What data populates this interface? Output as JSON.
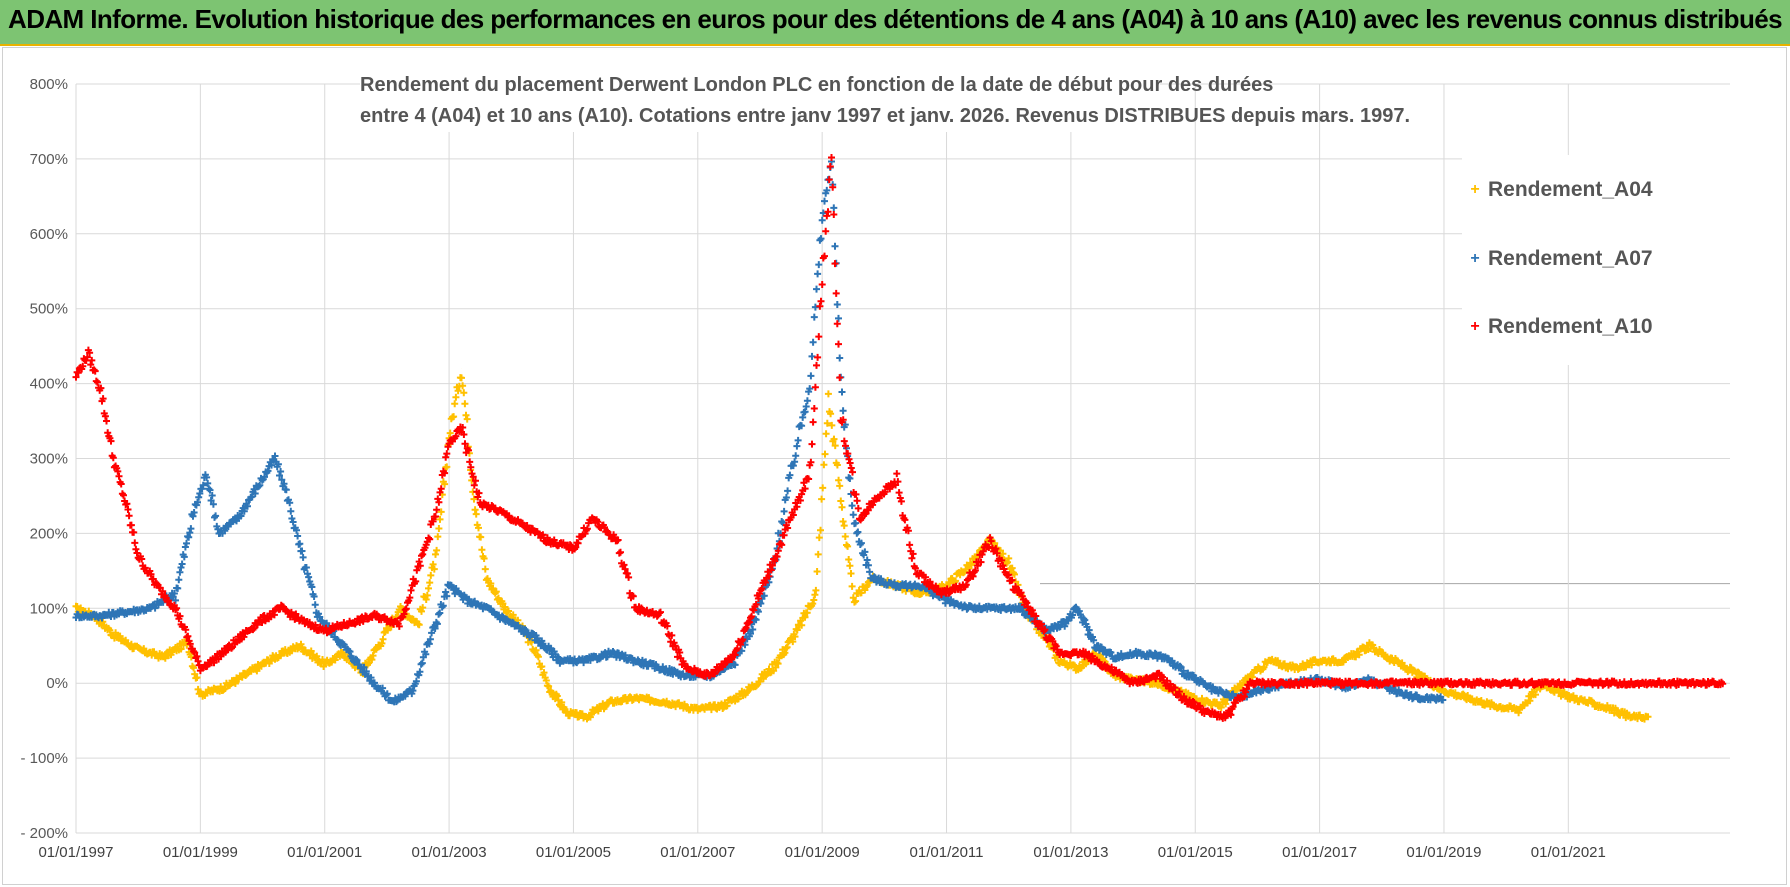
{
  "banner": {
    "title": "ADAM Informe. Evolution historique des performances en euros pour des détentions de 4 ans (A04) à 10 ans (A10) avec les revenus connus distribués"
  },
  "chart_data": {
    "type": "scatter",
    "title_line1": "Rendement du placement Derwent London PLC en fonction de la date de début pour des durées",
    "title_line2": "entre 4 (A04) et 10 ans (A10).  Cotations entre janv 1997 et janv. 2026. Revenus DISTRIBUES depuis mars. 1997.",
    "x_tick_labels": [
      "01/01/1997",
      "01/01/1999",
      "01/01/2001",
      "01/01/2003",
      "01/01/2005",
      "01/01/2007",
      "01/01/2009",
      "01/01/2011",
      "01/01/2013",
      "01/01/2015",
      "01/01/2017",
      "01/01/2019",
      "01/01/2021"
    ],
    "y_tick_labels": [
      "800%",
      "700%",
      "600%",
      "500%",
      "400%",
      "300%",
      "200%",
      "100%",
      "0%",
      "- 100%",
      "- 200%"
    ],
    "ylim": [
      -200,
      800
    ],
    "xlim": [
      1997.0,
      2023.6
    ],
    "grid": true,
    "legend_position": "top-right",
    "series": [
      {
        "name": "Rendement_A04",
        "color": "#ffc000",
        "points": [
          [
            1997.0,
            100
          ],
          [
            1997.3,
            90
          ],
          [
            1997.6,
            65
          ],
          [
            1998.0,
            45
          ],
          [
            1998.4,
            35
          ],
          [
            1998.8,
            55
          ],
          [
            1999.0,
            -15
          ],
          [
            1999.4,
            -5
          ],
          [
            1999.8,
            15
          ],
          [
            2000.2,
            35
          ],
          [
            2000.6,
            50
          ],
          [
            2001.0,
            25
          ],
          [
            2001.3,
            40
          ],
          [
            2001.6,
            15
          ],
          [
            2001.9,
            55
          ],
          [
            2002.2,
            100
          ],
          [
            2002.5,
            80
          ],
          [
            2002.8,
            170
          ],
          [
            2003.0,
            330
          ],
          [
            2003.2,
            420
          ],
          [
            2003.4,
            250
          ],
          [
            2003.6,
            140
          ],
          [
            2003.9,
            100
          ],
          [
            2004.2,
            70
          ],
          [
            2004.4,
            40
          ],
          [
            2004.6,
            -5
          ],
          [
            2004.9,
            -40
          ],
          [
            2005.2,
            -45
          ],
          [
            2005.6,
            -25
          ],
          [
            2006.0,
            -20
          ],
          [
            2006.5,
            -25
          ],
          [
            2007.0,
            -35
          ],
          [
            2007.4,
            -30
          ],
          [
            2007.8,
            -10
          ],
          [
            2008.2,
            20
          ],
          [
            2008.6,
            70
          ],
          [
            2008.9,
            120
          ],
          [
            2009.1,
            380
          ],
          [
            2009.3,
            250
          ],
          [
            2009.5,
            110
          ],
          [
            2009.8,
            140
          ],
          [
            2010.2,
            130
          ],
          [
            2010.6,
            120
          ],
          [
            2011.0,
            130
          ],
          [
            2011.4,
            160
          ],
          [
            2011.7,
            190
          ],
          [
            2012.0,
            160
          ],
          [
            2012.3,
            90
          ],
          [
            2012.6,
            60
          ],
          [
            2012.8,
            30
          ],
          [
            2013.1,
            20
          ],
          [
            2013.4,
            40
          ],
          [
            2013.7,
            10
          ],
          [
            2014.0,
            5
          ],
          [
            2014.4,
            0
          ],
          [
            2014.7,
            -10
          ],
          [
            2015.0,
            -20
          ],
          [
            2015.4,
            -30
          ],
          [
            2015.9,
            10
          ],
          [
            2016.2,
            30
          ],
          [
            2016.6,
            20
          ],
          [
            2017.0,
            30
          ],
          [
            2017.4,
            30
          ],
          [
            2017.8,
            50
          ],
          [
            2018.2,
            30
          ],
          [
            2018.6,
            10
          ],
          [
            2019.0,
            -10
          ],
          [
            2019.4,
            -20
          ],
          [
            2019.8,
            -30
          ],
          [
            2020.2,
            -35
          ],
          [
            2020.6,
            0
          ],
          [
            2020.9,
            -15
          ],
          [
            2021.3,
            -25
          ],
          [
            2021.7,
            -35
          ],
          [
            2022.0,
            -45
          ],
          [
            2022.3,
            -45
          ]
        ]
      },
      {
        "name": "Rendement_A07",
        "color": "#2e75b6",
        "points": [
          [
            1997.0,
            90
          ],
          [
            1997.4,
            90
          ],
          [
            1997.8,
            95
          ],
          [
            1998.2,
            100
          ],
          [
            1998.6,
            120
          ],
          [
            1998.9,
            230
          ],
          [
            1999.1,
            280
          ],
          [
            1999.3,
            200
          ],
          [
            1999.6,
            220
          ],
          [
            1999.9,
            260
          ],
          [
            2000.2,
            300
          ],
          [
            2000.4,
            250
          ],
          [
            2000.6,
            180
          ],
          [
            2000.9,
            90
          ],
          [
            2001.2,
            60
          ],
          [
            2001.5,
            30
          ],
          [
            2001.8,
            0
          ],
          [
            2002.1,
            -25
          ],
          [
            2002.4,
            -10
          ],
          [
            2002.7,
            60
          ],
          [
            2003.0,
            130
          ],
          [
            2003.3,
            110
          ],
          [
            2003.6,
            100
          ],
          [
            2004.0,
            80
          ],
          [
            2004.4,
            60
          ],
          [
            2004.8,
            30
          ],
          [
            2005.2,
            30
          ],
          [
            2005.6,
            40
          ],
          [
            2006.0,
            30
          ],
          [
            2006.4,
            20
          ],
          [
            2006.8,
            10
          ],
          [
            2007.2,
            10
          ],
          [
            2007.6,
            30
          ],
          [
            2007.9,
            80
          ],
          [
            2008.2,
            150
          ],
          [
            2008.5,
            280
          ],
          [
            2008.8,
            400
          ],
          [
            2009.0,
            620
          ],
          [
            2009.15,
            700
          ],
          [
            2009.3,
            400
          ],
          [
            2009.5,
            220
          ],
          [
            2009.8,
            140
          ],
          [
            2010.2,
            130
          ],
          [
            2010.6,
            130
          ],
          [
            2011.0,
            110
          ],
          [
            2011.4,
            100
          ],
          [
            2011.8,
            100
          ],
          [
            2012.2,
            100
          ],
          [
            2012.6,
            70
          ],
          [
            2012.9,
            80
          ],
          [
            2013.1,
            100
          ],
          [
            2013.4,
            50
          ],
          [
            2013.7,
            35
          ],
          [
            2014.1,
            40
          ],
          [
            2014.5,
            35
          ],
          [
            2014.9,
            10
          ],
          [
            2015.3,
            -10
          ],
          [
            2015.7,
            -20
          ],
          [
            2016.0,
            -10
          ],
          [
            2016.5,
            0
          ],
          [
            2017.0,
            5
          ],
          [
            2017.4,
            -5
          ],
          [
            2017.8,
            5
          ],
          [
            2018.2,
            -10
          ],
          [
            2018.6,
            -20
          ],
          [
            2019.0,
            -20
          ]
        ]
      },
      {
        "name": "Rendement_A10",
        "color": "#ff0000",
        "points": [
          [
            1997.0,
            410
          ],
          [
            1997.2,
            440
          ],
          [
            1997.4,
            390
          ],
          [
            1997.6,
            300
          ],
          [
            1997.8,
            240
          ],
          [
            1998.0,
            170
          ],
          [
            1998.3,
            130
          ],
          [
            1998.6,
            100
          ],
          [
            1998.8,
            60
          ],
          [
            1999.0,
            20
          ],
          [
            1999.2,
            30
          ],
          [
            1999.5,
            50
          ],
          [
            1999.9,
            80
          ],
          [
            2000.3,
            100
          ],
          [
            2000.7,
            80
          ],
          [
            2001.0,
            70
          ],
          [
            2001.4,
            80
          ],
          [
            2001.8,
            90
          ],
          [
            2002.2,
            80
          ],
          [
            2002.5,
            150
          ],
          [
            2002.8,
            230
          ],
          [
            2003.0,
            320
          ],
          [
            2003.2,
            340
          ],
          [
            2003.5,
            240
          ],
          [
            2003.8,
            230
          ],
          [
            2004.2,
            210
          ],
          [
            2004.6,
            190
          ],
          [
            2005.0,
            180
          ],
          [
            2005.3,
            220
          ],
          [
            2005.7,
            190
          ],
          [
            2006.0,
            100
          ],
          [
            2006.4,
            90
          ],
          [
            2006.8,
            20
          ],
          [
            2007.2,
            10
          ],
          [
            2007.6,
            40
          ],
          [
            2007.9,
            100
          ],
          [
            2008.2,
            160
          ],
          [
            2008.5,
            220
          ],
          [
            2008.8,
            280
          ],
          [
            2009.0,
            540
          ],
          [
            2009.15,
            700
          ],
          [
            2009.3,
            360
          ],
          [
            2009.6,
            220
          ],
          [
            2009.9,
            250
          ],
          [
            2010.2,
            270
          ],
          [
            2010.5,
            150
          ],
          [
            2010.9,
            120
          ],
          [
            2011.3,
            130
          ],
          [
            2011.7,
            190
          ],
          [
            2012.0,
            140
          ],
          [
            2012.4,
            90
          ],
          [
            2012.8,
            40
          ],
          [
            2013.2,
            40
          ],
          [
            2013.6,
            20
          ],
          [
            2014.0,
            0
          ],
          [
            2014.4,
            10
          ],
          [
            2014.8,
            -20
          ],
          [
            2015.2,
            -40
          ],
          [
            2015.5,
            -45
          ],
          [
            2015.9,
            0
          ],
          [
            2017.0,
            0
          ],
          [
            2018.5,
            0
          ],
          [
            2020.0,
            0
          ],
          [
            2021.5,
            0
          ],
          [
            2023.5,
            0
          ]
        ]
      }
    ]
  }
}
